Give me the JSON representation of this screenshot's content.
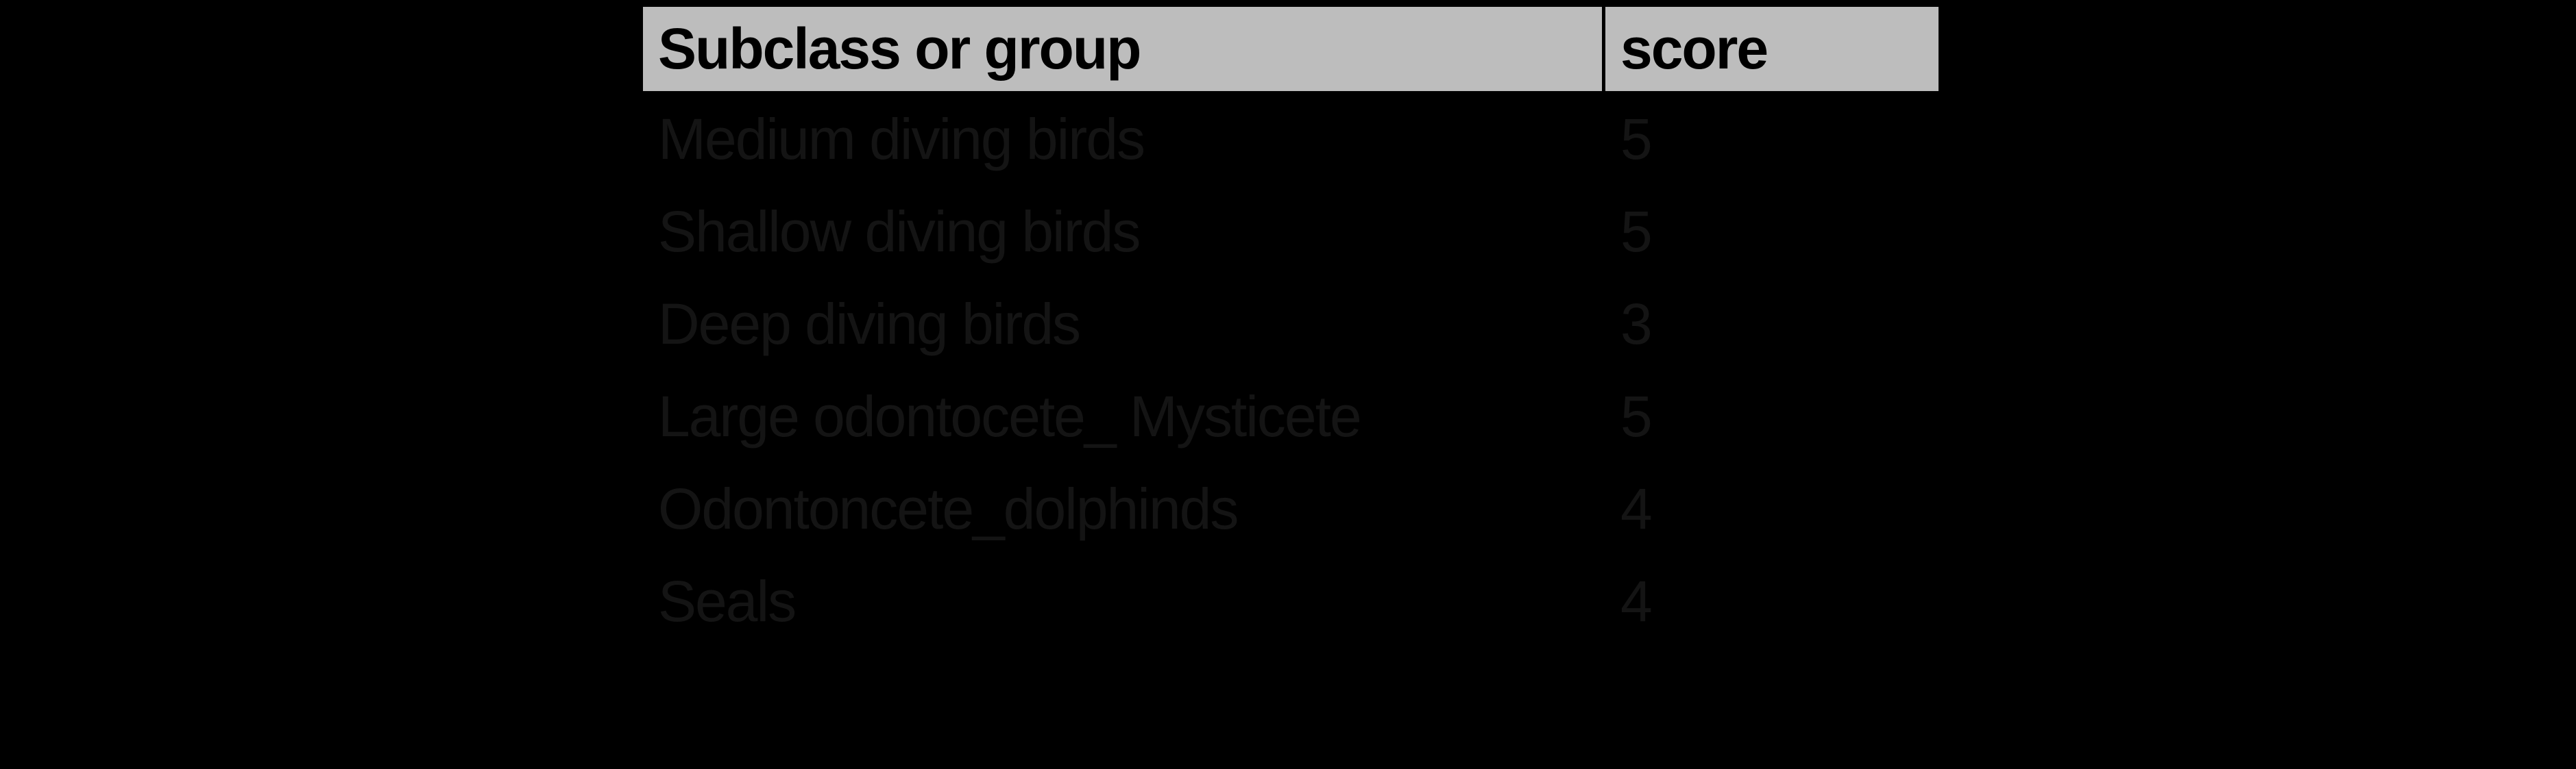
{
  "page": {
    "background_color": "#000000"
  },
  "table": {
    "header": {
      "col1": "Subclass or group",
      "col2": "score"
    },
    "rows": [
      {
        "group": "Medium diving birds",
        "score": "5"
      },
      {
        "group": "Shallow diving birds",
        "score": "5"
      },
      {
        "group": "Deep diving birds",
        "score": "3"
      },
      {
        "group": "Large odontocete_ Mysticete",
        "score": "5"
      },
      {
        "group": "Odontoncete_dolphinds",
        "score": "4"
      },
      {
        "group": "Seals",
        "score": "4"
      }
    ],
    "colors": {
      "header_background": "#bdbdbd",
      "header_text": "#000000",
      "row_text": "#141414",
      "border": "#000000"
    }
  },
  "chart_data": {
    "type": "table",
    "title": "",
    "columns": [
      "Subclass or group",
      "score"
    ],
    "rows": [
      [
        "Medium diving birds",
        5
      ],
      [
        "Shallow diving birds",
        5
      ],
      [
        "Deep diving birds",
        3
      ],
      [
        "Large odontocete_ Mysticete",
        5
      ],
      [
        "Odontoncete_dolphinds",
        4
      ],
      [
        "Seals",
        4
      ]
    ]
  }
}
